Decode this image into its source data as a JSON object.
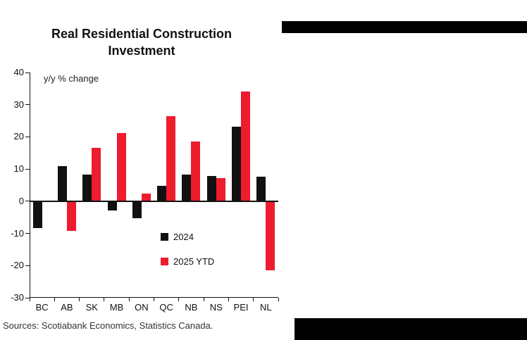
{
  "chart_data": {
    "type": "bar",
    "title": "Real Residential Construction Investment",
    "subtitle": "y/y % change",
    "categories": [
      "BC",
      "AB",
      "SK",
      "MB",
      "ON",
      "QC",
      "NB",
      "NS",
      "PEI",
      "NL"
    ],
    "series": [
      {
        "name": "2024",
        "color": "#111111",
        "values": [
          -8.4,
          10.8,
          8.2,
          -2.8,
          -5.2,
          4.7,
          8.2,
          7.9,
          23.2,
          7.6
        ]
      },
      {
        "name": "2025 YTD",
        "color": "#ed1c2e",
        "values": [
          0,
          -9.2,
          16.5,
          21.2,
          2.4,
          26.5,
          18.6,
          7.1,
          34.0,
          -21.5
        ]
      }
    ],
    "ylim": [
      -30,
      40
    ],
    "yticks": [
      40,
      30,
      20,
      10,
      0,
      -10,
      -20,
      -30
    ],
    "grid": false,
    "legend_position": "inside-lower-middle"
  },
  "footer": {
    "sources": "Sources: Scotiabank Economics, Statistics Canada."
  }
}
